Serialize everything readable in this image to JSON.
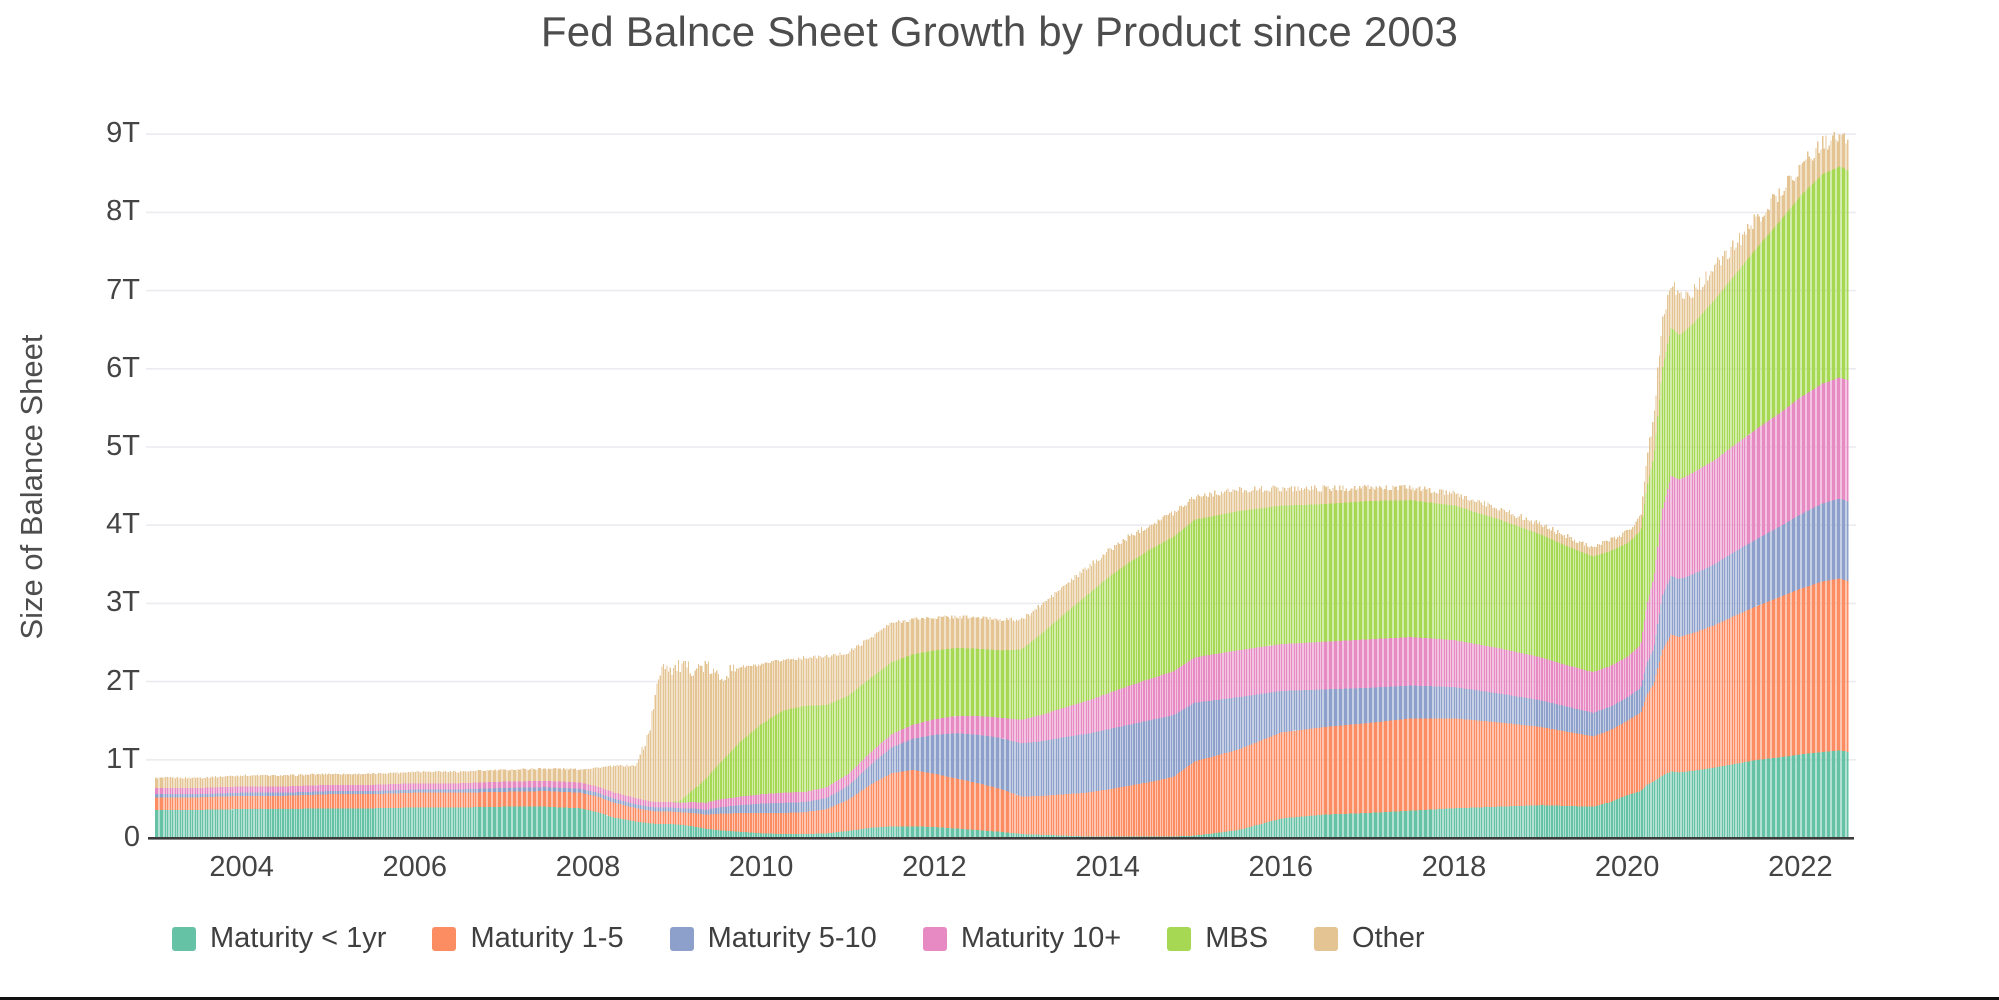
{
  "title": "Fed Balnce Sheet Growth by Product since 2003",
  "y_axis": {
    "label": "Size of Balance Sheet",
    "ticks": [
      {
        "value": 0,
        "label": "0"
      },
      {
        "value": 1,
        "label": "1T"
      },
      {
        "value": 2,
        "label": "2T"
      },
      {
        "value": 3,
        "label": "3T"
      },
      {
        "value": 4,
        "label": "4T"
      },
      {
        "value": 5,
        "label": "5T"
      },
      {
        "value": 6,
        "label": "6T"
      },
      {
        "value": 7,
        "label": "7T"
      },
      {
        "value": 8,
        "label": "8T"
      },
      {
        "value": 9,
        "label": "9T"
      }
    ]
  },
  "x_axis": {
    "ticks": [
      {
        "value": 2004,
        "label": "2004"
      },
      {
        "value": 2006,
        "label": "2006"
      },
      {
        "value": 2008,
        "label": "2008"
      },
      {
        "value": 2010,
        "label": "2010"
      },
      {
        "value": 2012,
        "label": "2012"
      },
      {
        "value": 2014,
        "label": "2014"
      },
      {
        "value": 2016,
        "label": "2016"
      },
      {
        "value": 2018,
        "label": "2018"
      },
      {
        "value": 2020,
        "label": "2020"
      },
      {
        "value": 2022,
        "label": "2022"
      }
    ]
  },
  "colors": {
    "grid": "#ebebf0",
    "axis_line": "#3c3c3c",
    "text": "#444444",
    "title_text": "#4d4d4d"
  },
  "chart_data": {
    "type": "bar",
    "subtype": "stacked-vertical-weekly-bars",
    "title": "Fed Balnce Sheet Growth by Product since 2003",
    "xlabel": "",
    "ylabel": "Size of Balance Sheet",
    "y_unit": "trillions USD",
    "ylim": [
      0,
      9
    ],
    "xlim": [
      2003.0,
      2022.55
    ],
    "grid": "horizontal",
    "legend_position": "bottom",
    "x_years": [
      2003.0,
      2003.5,
      2004.0,
      2004.5,
      2005.0,
      2005.5,
      2006.0,
      2006.5,
      2007.0,
      2007.5,
      2007.9,
      2008.1,
      2008.3,
      2008.55,
      2008.7,
      2008.78,
      2008.85,
      2008.95,
      2009.05,
      2009.2,
      2009.35,
      2009.5,
      2009.75,
      2010.0,
      2010.25,
      2010.5,
      2010.75,
      2011.0,
      2011.25,
      2011.5,
      2011.75,
      2012.0,
      2012.25,
      2012.5,
      2012.75,
      2013.0,
      2013.25,
      2013.5,
      2013.75,
      2014.0,
      2014.25,
      2014.5,
      2014.75,
      2015.0,
      2015.5,
      2016.0,
      2016.5,
      2017.0,
      2017.5,
      2018.0,
      2018.5,
      2019.0,
      2019.3,
      2019.6,
      2019.8,
      2020.0,
      2020.15,
      2020.22,
      2020.3,
      2020.4,
      2020.5,
      2020.6,
      2020.75,
      2021.0,
      2021.25,
      2021.5,
      2021.75,
      2022.0,
      2022.25,
      2022.45,
      2022.55
    ],
    "series": [
      {
        "name": "Maturity < 1yr",
        "color": "#66c2a5",
        "values": [
          0.36,
          0.36,
          0.37,
          0.37,
          0.38,
          0.38,
          0.39,
          0.39,
          0.4,
          0.4,
          0.38,
          0.33,
          0.26,
          0.21,
          0.19,
          0.18,
          0.18,
          0.18,
          0.17,
          0.15,
          0.12,
          0.1,
          0.08,
          0.06,
          0.05,
          0.05,
          0.06,
          0.09,
          0.13,
          0.15,
          0.15,
          0.14,
          0.12,
          0.1,
          0.08,
          0.05,
          0.04,
          0.03,
          0.02,
          0.02,
          0.02,
          0.02,
          0.02,
          0.03,
          0.1,
          0.25,
          0.3,
          0.32,
          0.35,
          0.38,
          0.4,
          0.42,
          0.41,
          0.4,
          0.46,
          0.55,
          0.6,
          0.68,
          0.72,
          0.8,
          0.85,
          0.84,
          0.86,
          0.9,
          0.95,
          1.0,
          1.03,
          1.07,
          1.1,
          1.12,
          1.1
        ]
      },
      {
        "name": "Maturity 1-5",
        "color": "#fc8d62",
        "values": [
          0.16,
          0.16,
          0.17,
          0.17,
          0.18,
          0.18,
          0.19,
          0.19,
          0.19,
          0.2,
          0.2,
          0.2,
          0.19,
          0.17,
          0.16,
          0.16,
          0.16,
          0.16,
          0.16,
          0.17,
          0.18,
          0.21,
          0.24,
          0.26,
          0.27,
          0.28,
          0.31,
          0.4,
          0.55,
          0.68,
          0.72,
          0.68,
          0.64,
          0.6,
          0.55,
          0.48,
          0.5,
          0.53,
          0.56,
          0.6,
          0.65,
          0.7,
          0.76,
          0.95,
          1.03,
          1.1,
          1.12,
          1.15,
          1.18,
          1.15,
          1.08,
          1.0,
          0.95,
          0.9,
          0.92,
          0.95,
          1.0,
          1.15,
          1.25,
          1.6,
          1.75,
          1.73,
          1.76,
          1.82,
          1.9,
          1.97,
          2.05,
          2.12,
          2.18,
          2.2,
          2.18
        ]
      },
      {
        "name": "Maturity 5-10",
        "color": "#8da0cb",
        "values": [
          0.04,
          0.04,
          0.04,
          0.04,
          0.04,
          0.04,
          0.04,
          0.04,
          0.05,
          0.05,
          0.05,
          0.05,
          0.05,
          0.05,
          0.05,
          0.05,
          0.05,
          0.05,
          0.05,
          0.06,
          0.06,
          0.08,
          0.1,
          0.12,
          0.13,
          0.13,
          0.14,
          0.18,
          0.25,
          0.33,
          0.4,
          0.5,
          0.58,
          0.62,
          0.65,
          0.68,
          0.7,
          0.73,
          0.75,
          0.77,
          0.78,
          0.79,
          0.79,
          0.75,
          0.67,
          0.53,
          0.48,
          0.45,
          0.42,
          0.4,
          0.37,
          0.34,
          0.32,
          0.3,
          0.3,
          0.3,
          0.32,
          0.4,
          0.45,
          0.7,
          0.75,
          0.74,
          0.75,
          0.78,
          0.82,
          0.86,
          0.9,
          0.95,
          1.0,
          1.02,
          1.02
        ]
      },
      {
        "name": "Maturity 10+",
        "color": "#e78ac3",
        "values": [
          0.08,
          0.08,
          0.08,
          0.08,
          0.08,
          0.08,
          0.08,
          0.08,
          0.08,
          0.08,
          0.08,
          0.08,
          0.08,
          0.08,
          0.07,
          0.07,
          0.07,
          0.07,
          0.07,
          0.08,
          0.09,
          0.1,
          0.11,
          0.12,
          0.13,
          0.13,
          0.14,
          0.15,
          0.16,
          0.17,
          0.18,
          0.2,
          0.22,
          0.24,
          0.26,
          0.3,
          0.34,
          0.38,
          0.42,
          0.46,
          0.5,
          0.53,
          0.56,
          0.58,
          0.6,
          0.6,
          0.61,
          0.62,
          0.62,
          0.6,
          0.58,
          0.55,
          0.53,
          0.52,
          0.52,
          0.52,
          0.55,
          0.75,
          0.9,
          1.1,
          1.28,
          1.27,
          1.3,
          1.33,
          1.37,
          1.41,
          1.45,
          1.5,
          1.53,
          1.55,
          1.55
        ]
      },
      {
        "name": "MBS",
        "color": "#a6d854",
        "values": [
          0,
          0,
          0,
          0,
          0,
          0,
          0,
          0,
          0,
          0,
          0,
          0,
          0,
          0,
          0,
          0,
          0,
          0,
          0.02,
          0.15,
          0.3,
          0.45,
          0.7,
          0.9,
          1.05,
          1.1,
          1.05,
          1.0,
          0.95,
          0.92,
          0.9,
          0.88,
          0.87,
          0.86,
          0.86,
          0.9,
          1.05,
          1.2,
          1.35,
          1.48,
          1.58,
          1.66,
          1.72,
          1.76,
          1.78,
          1.77,
          1.76,
          1.77,
          1.75,
          1.72,
          1.65,
          1.57,
          1.52,
          1.48,
          1.47,
          1.45,
          1.46,
          1.5,
          1.55,
          1.8,
          1.9,
          1.85,
          1.9,
          2.05,
          2.18,
          2.32,
          2.45,
          2.58,
          2.68,
          2.7,
          2.68
        ]
      },
      {
        "name": "Other",
        "color": "#e5c494",
        "values": [
          0.13,
          0.13,
          0.14,
          0.14,
          0.14,
          0.14,
          0.15,
          0.15,
          0.15,
          0.16,
          0.17,
          0.24,
          0.34,
          0.42,
          0.9,
          1.4,
          1.8,
          1.7,
          1.72,
          1.55,
          1.45,
          1.12,
          0.96,
          0.75,
          0.65,
          0.62,
          0.62,
          0.55,
          0.52,
          0.5,
          0.45,
          0.42,
          0.4,
          0.4,
          0.4,
          0.38,
          0.37,
          0.36,
          0.35,
          0.34,
          0.33,
          0.32,
          0.31,
          0.3,
          0.27,
          0.22,
          0.2,
          0.17,
          0.16,
          0.15,
          0.14,
          0.13,
          0.13,
          0.12,
          0.14,
          0.16,
          0.18,
          0.4,
          0.55,
          0.65,
          0.6,
          0.48,
          0.42,
          0.4,
          0.38,
          0.37,
          0.37,
          0.38,
          0.39,
          0.38,
          0.35
        ]
      }
    ]
  }
}
